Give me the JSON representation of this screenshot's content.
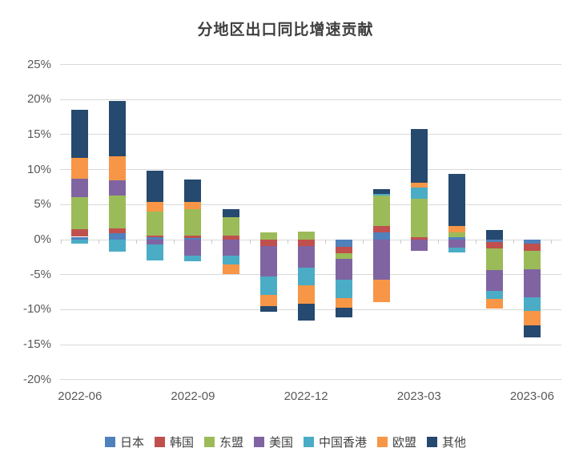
{
  "chart_data": {
    "type": "bar",
    "stacked": true,
    "title": "分地区出口同比增速贡献",
    "categories": [
      "2022-06",
      "2022-07",
      "2022-08",
      "2022-09",
      "2022-10",
      "2022-11",
      "2022-12",
      "2023-01",
      "2023-02",
      "2023-03",
      "2023-04",
      "2023-05",
      "2023-06"
    ],
    "x_tick_labels": [
      "2022-06",
      "2022-09",
      "2022-12",
      "2023-03",
      "2023-06"
    ],
    "x_tick_category_indexes": [
      0,
      3,
      6,
      9,
      12
    ],
    "y_tick_labels": [
      "25%",
      "20%",
      "15%",
      "10%",
      "5%",
      "0%",
      "-5%",
      "-10%",
      "-15%",
      "-20%"
    ],
    "ylim": [
      -20,
      25
    ],
    "y_tick_step": 5,
    "unit": "%",
    "grid": "horizontal",
    "legend_position": "bottom",
    "series": [
      {
        "id": "japan",
        "name": "日本",
        "color": "#4F81BD",
        "values": [
          0.4,
          0.9,
          0.3,
          0.2,
          0.0,
          0.0,
          0.0,
          -1.05,
          1.0,
          0.0,
          0.35,
          -0.3,
          -0.6
        ]
      },
      {
        "id": "korea",
        "name": "韩国",
        "color": "#C0504D",
        "values": [
          1.1,
          0.7,
          0.3,
          0.4,
          0.6,
          -0.9,
          -0.9,
          -0.85,
          0.9,
          0.35,
          0.0,
          -0.95,
          -1.0
        ]
      },
      {
        "id": "asean",
        "name": "东盟",
        "color": "#9BBB59",
        "values": [
          4.6,
          4.65,
          3.4,
          3.7,
          2.55,
          1.0,
          1.1,
          -0.9,
          4.35,
          5.45,
          0.7,
          -3.05,
          -2.65
        ]
      },
      {
        "id": "us",
        "name": "美国",
        "color": "#8064A2",
        "values": [
          2.6,
          2.2,
          -0.7,
          -2.3,
          -2.3,
          -4.35,
          -3.05,
          -2.95,
          -5.7,
          -1.65,
          -1.2,
          -3.05,
          -4.0
        ]
      },
      {
        "id": "hongkong",
        "name": "中国香港",
        "color": "#4BACC6",
        "values": [
          -0.6,
          -1.7,
          -2.3,
          -0.75,
          -1.25,
          -2.65,
          -2.6,
          -2.65,
          0.3,
          1.6,
          -0.6,
          -1.15,
          -1.9
        ]
      },
      {
        "id": "eu",
        "name": "欧盟",
        "color": "#F79646",
        "values": [
          3.0,
          3.4,
          1.4,
          1.1,
          -1.4,
          -1.65,
          -2.6,
          -1.35,
          -3.2,
          0.7,
          0.9,
          -1.35,
          -2.1
        ]
      },
      {
        "id": "other",
        "name": "其他",
        "color": "#25496F",
        "values": [
          6.8,
          7.9,
          4.4,
          3.2,
          1.15,
          -0.75,
          -2.35,
          -1.3,
          0.7,
          7.7,
          7.4,
          1.4,
          -1.7
        ]
      }
    ]
  }
}
